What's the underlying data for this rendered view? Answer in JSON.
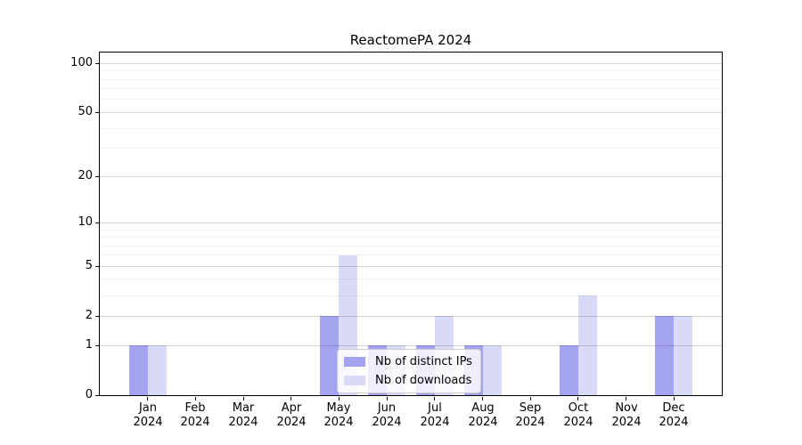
{
  "title": "ReactomePA 2024",
  "chart_data": {
    "type": "bar",
    "title": "ReactomePA 2024",
    "categories": [
      "Jan 2024",
      "Feb 2024",
      "Mar 2024",
      "Apr 2024",
      "May 2024",
      "Jun 2024",
      "Jul 2024",
      "Aug 2024",
      "Sep 2024",
      "Oct 2024",
      "Nov 2024",
      "Dec 2024"
    ],
    "series": [
      {
        "name": "Nb of distinct IPs",
        "color": "#a3a3f0",
        "values": [
          1,
          0,
          0,
          0,
          2,
          1,
          1,
          1,
          0,
          1,
          0,
          2
        ]
      },
      {
        "name": "Nb of downloads",
        "color": "#d9d9f8",
        "values": [
          1,
          0,
          0,
          0,
          6,
          1,
          2,
          1,
          0,
          3,
          0,
          2
        ]
      }
    ],
    "xlabel": "",
    "ylabel": "",
    "y_axis": {
      "scale": "log1p",
      "tick_values": [
        0,
        1,
        2,
        5,
        10,
        20,
        50,
        100
      ],
      "tick_labels": [
        "0",
        "1",
        "2",
        "5",
        "10",
        "20",
        "50",
        "100"
      ],
      "minor_gridlines": [
        3,
        4,
        6,
        7,
        8,
        9,
        30,
        40,
        60,
        70,
        80,
        90
      ],
      "range": [
        0,
        117
      ],
      "grid": true
    },
    "x_axis": {
      "range_units": [
        -1,
        12
      ]
    },
    "legend": {
      "position": "lower center",
      "entries": [
        "Nb of distinct IPs",
        "Nb of downloads"
      ]
    },
    "colors": {
      "spine": "#000000",
      "grid_major": "#d6d6d6",
      "grid_minor": "#f0f0f0",
      "legend_border": "#cccccc"
    }
  }
}
